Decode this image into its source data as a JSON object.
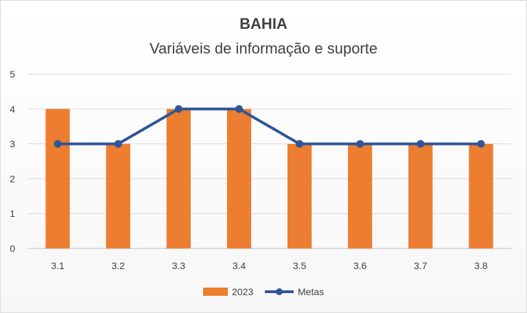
{
  "chart_data": {
    "type": "bar",
    "title": "BAHIA",
    "subtitle": "Variáveis de informação e suporte",
    "categories": [
      "3.1",
      "3.2",
      "3.3",
      "3.4",
      "3.5",
      "3.6",
      "3.7",
      "3.8"
    ],
    "series": [
      {
        "name": "2023",
        "type": "bar",
        "color": "#ED7D31",
        "values": [
          4,
          3,
          4,
          4,
          3,
          3,
          3,
          3
        ]
      },
      {
        "name": "Metas",
        "type": "line",
        "color": "#2F5597",
        "values": [
          3,
          3,
          4,
          4,
          3,
          3,
          3,
          3
        ]
      }
    ],
    "ylim": [
      0,
      5
    ],
    "yticks": [
      "0",
      "1",
      "2",
      "3",
      "4",
      "5"
    ],
    "grid": true,
    "legend_position": "bottom"
  }
}
